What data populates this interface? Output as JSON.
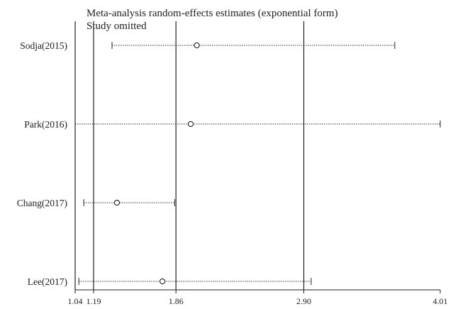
{
  "chart_data": {
    "type": "forest",
    "title": "Meta-analysis random-effects estimates (exponential form)",
    "subtitle": "Study omitted",
    "xlabel": "",
    "ylabel": "",
    "xlim": [
      1.04,
      4.01
    ],
    "x_ticks": [
      "1.04",
      "1.19",
      "1.86",
      "2.90",
      "4.01"
    ],
    "x_tick_values": [
      1.04,
      1.19,
      1.86,
      2.9,
      4.01
    ],
    "reference_lines": [
      1.19,
      1.86,
      2.9
    ],
    "studies": [
      {
        "name": "Sodja(2015)",
        "estimate": 2.03,
        "lower": 1.34,
        "upper": 3.64
      },
      {
        "name": "Park(2016)",
        "estimate": 1.98,
        "lower": 1.04,
        "upper": 4.01
      },
      {
        "name": "Chang(2017)",
        "estimate": 1.38,
        "lower": 1.11,
        "upper": 1.85
      },
      {
        "name": "Lee(2017)",
        "estimate": 1.75,
        "lower": 1.07,
        "upper": 2.96
      }
    ]
  }
}
